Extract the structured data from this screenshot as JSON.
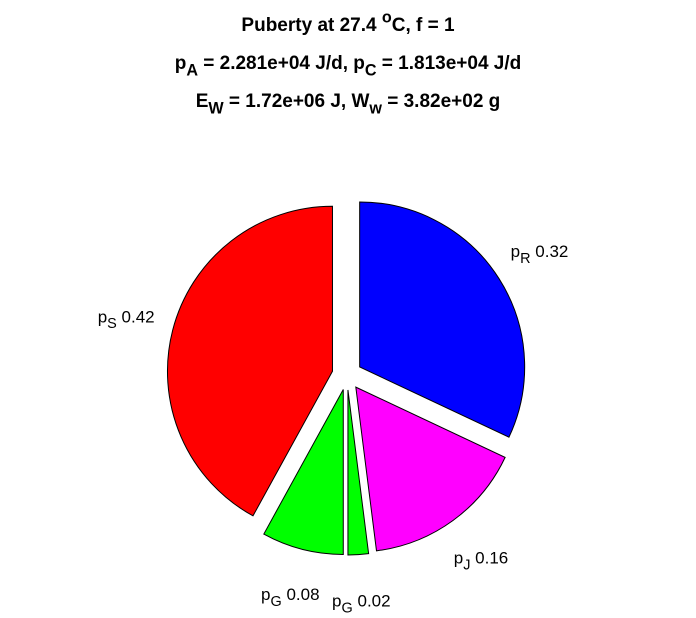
{
  "chart_data": {
    "type": "pie",
    "title_lines": [
      [
        {
          "text": "Puberty at 27.4 "
        },
        {
          "sup": "o"
        },
        {
          "text": "C, f = 1"
        }
      ],
      [
        {
          "text": "p"
        },
        {
          "sub": "A"
        },
        {
          "text": " = 2.281e+04 J/d,  p"
        },
        {
          "sub": "C"
        },
        {
          "text": " = 1.813e+04 J/d"
        }
      ],
      [
        {
          "text": "E"
        },
        {
          "sub": "W"
        },
        {
          "text": " = 1.72e+06 J, W"
        },
        {
          "sub": "w"
        },
        {
          "text": " = 3.82e+02 g"
        }
      ]
    ],
    "labels": [
      [
        {
          "text": "p"
        },
        {
          "sub": "R"
        }
      ],
      [
        {
          "text": "p"
        },
        {
          "sub": "J"
        }
      ],
      [
        {
          "text": "p"
        },
        {
          "sub": "G"
        }
      ],
      [
        {
          "text": "p"
        },
        {
          "sub": "G"
        }
      ],
      [
        {
          "text": "p"
        },
        {
          "sub": "S"
        }
      ]
    ],
    "values": [
      0.32,
      0.16,
      0.02,
      0.08,
      0.42
    ],
    "colors": [
      "#0000ff",
      "#ff00ff",
      "#00ff00",
      "#00ff00",
      "#ff0000"
    ],
    "exploded": true
  }
}
